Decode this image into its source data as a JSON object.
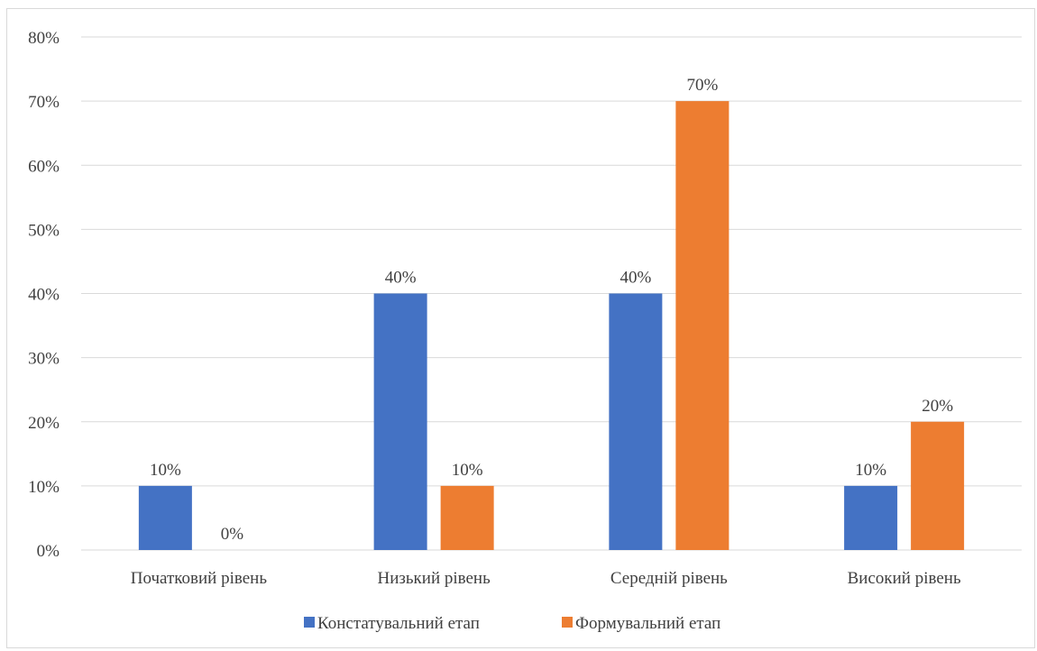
{
  "chart_data": {
    "type": "bar",
    "title": "",
    "xlabel": "",
    "ylabel": "",
    "categories": [
      "Початковий рівень",
      "Низький рівень",
      "Середній рівень",
      "Високий рівень"
    ],
    "series": [
      {
        "name": "Констатувальний етап",
        "values": [
          0.1,
          0.4,
          0.4,
          0.1
        ],
        "labels": [
          "10%",
          "40%",
          "40%",
          "10%"
        ],
        "color": "#4472c4"
      },
      {
        "name": "Формувальний етап",
        "values": [
          0.0,
          0.1,
          0.7,
          0.2
        ],
        "labels": [
          "0%",
          "10%",
          "70%",
          "20%"
        ],
        "color": "#ed7d31"
      }
    ],
    "ylim": [
      0,
      0.8
    ],
    "yticks": [
      0,
      0.1,
      0.2,
      0.3,
      0.4,
      0.5,
      0.6,
      0.7,
      0.8
    ],
    "yticklabels": [
      "0%",
      "10%",
      "20%",
      "30%",
      "40%",
      "50%",
      "60%",
      "70%",
      "80%"
    ],
    "grid": true,
    "legend_position": "bottom",
    "gridline_color": "#d9d9d9"
  }
}
